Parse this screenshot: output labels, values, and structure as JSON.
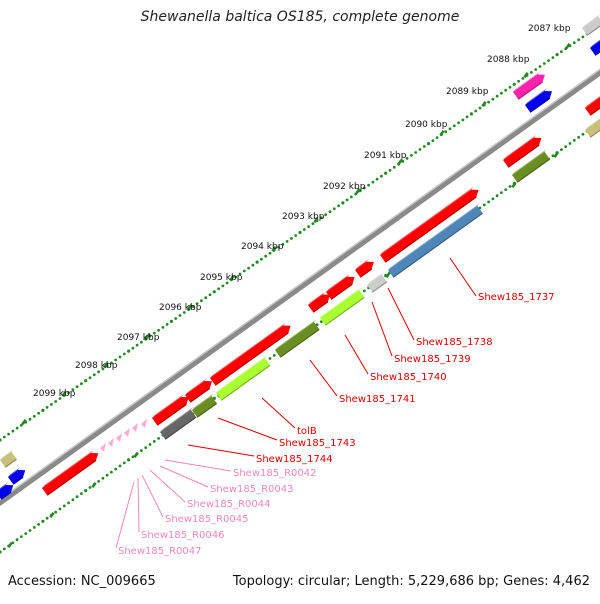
{
  "title": "Shewanella baltica OS185, complete genome",
  "footer": {
    "accession": "Accession: NC_009665",
    "summary": "Topology: circular; Length: 5,229,686 bp; Genes: 4,462"
  },
  "ticks": [
    "2087 kbp",
    "2088 kbp",
    "2089 kbp",
    "2090 kbp",
    "2091 kbp",
    "2092 kbp",
    "2093 kbp",
    "2094 kbp",
    "2095 kbp",
    "2096 kbp",
    "2097 kbp",
    "2098 kbp",
    "2099 kbp"
  ],
  "gene_labels": [
    {
      "text": "Shew185_1737",
      "type": "cds"
    },
    {
      "text": "Shew185_1738",
      "type": "cds"
    },
    {
      "text": "Shew185_1739",
      "type": "cds"
    },
    {
      "text": "Shew185_1740",
      "type": "cds"
    },
    {
      "text": "Shew185_1741",
      "type": "cds"
    },
    {
      "text": "tolB",
      "type": "cds"
    },
    {
      "text": "Shew185_1743",
      "type": "cds"
    },
    {
      "text": "Shew185_1744",
      "type": "cds"
    },
    {
      "text": "Shew185_R0042",
      "type": "trna"
    },
    {
      "text": "Shew185_R0043",
      "type": "trna"
    },
    {
      "text": "Shew185_R0044",
      "type": "trna"
    },
    {
      "text": "Shew185_R0045",
      "type": "trna"
    },
    {
      "text": "Shew185_R0046",
      "type": "trna"
    },
    {
      "text": "Shew185_R0047",
      "type": "trna"
    }
  ],
  "colors": {
    "cds_label": "#dd0000",
    "trna_label": "#ee88bb",
    "gene_red": "#ff0000",
    "gene_blue": "#0000ee",
    "gene_steel": "#4f86b8",
    "gene_olive": "#6b8e23",
    "gene_lime": "#aaff33",
    "gene_gray": "#666666",
    "gene_lightgray": "#cccccc",
    "gene_magenta": "#ff22aa",
    "gene_khaki": "#c8bf7a",
    "trna_pink": "#ffaad4",
    "backbone": "#888888",
    "tick_mark": "#228822"
  }
}
